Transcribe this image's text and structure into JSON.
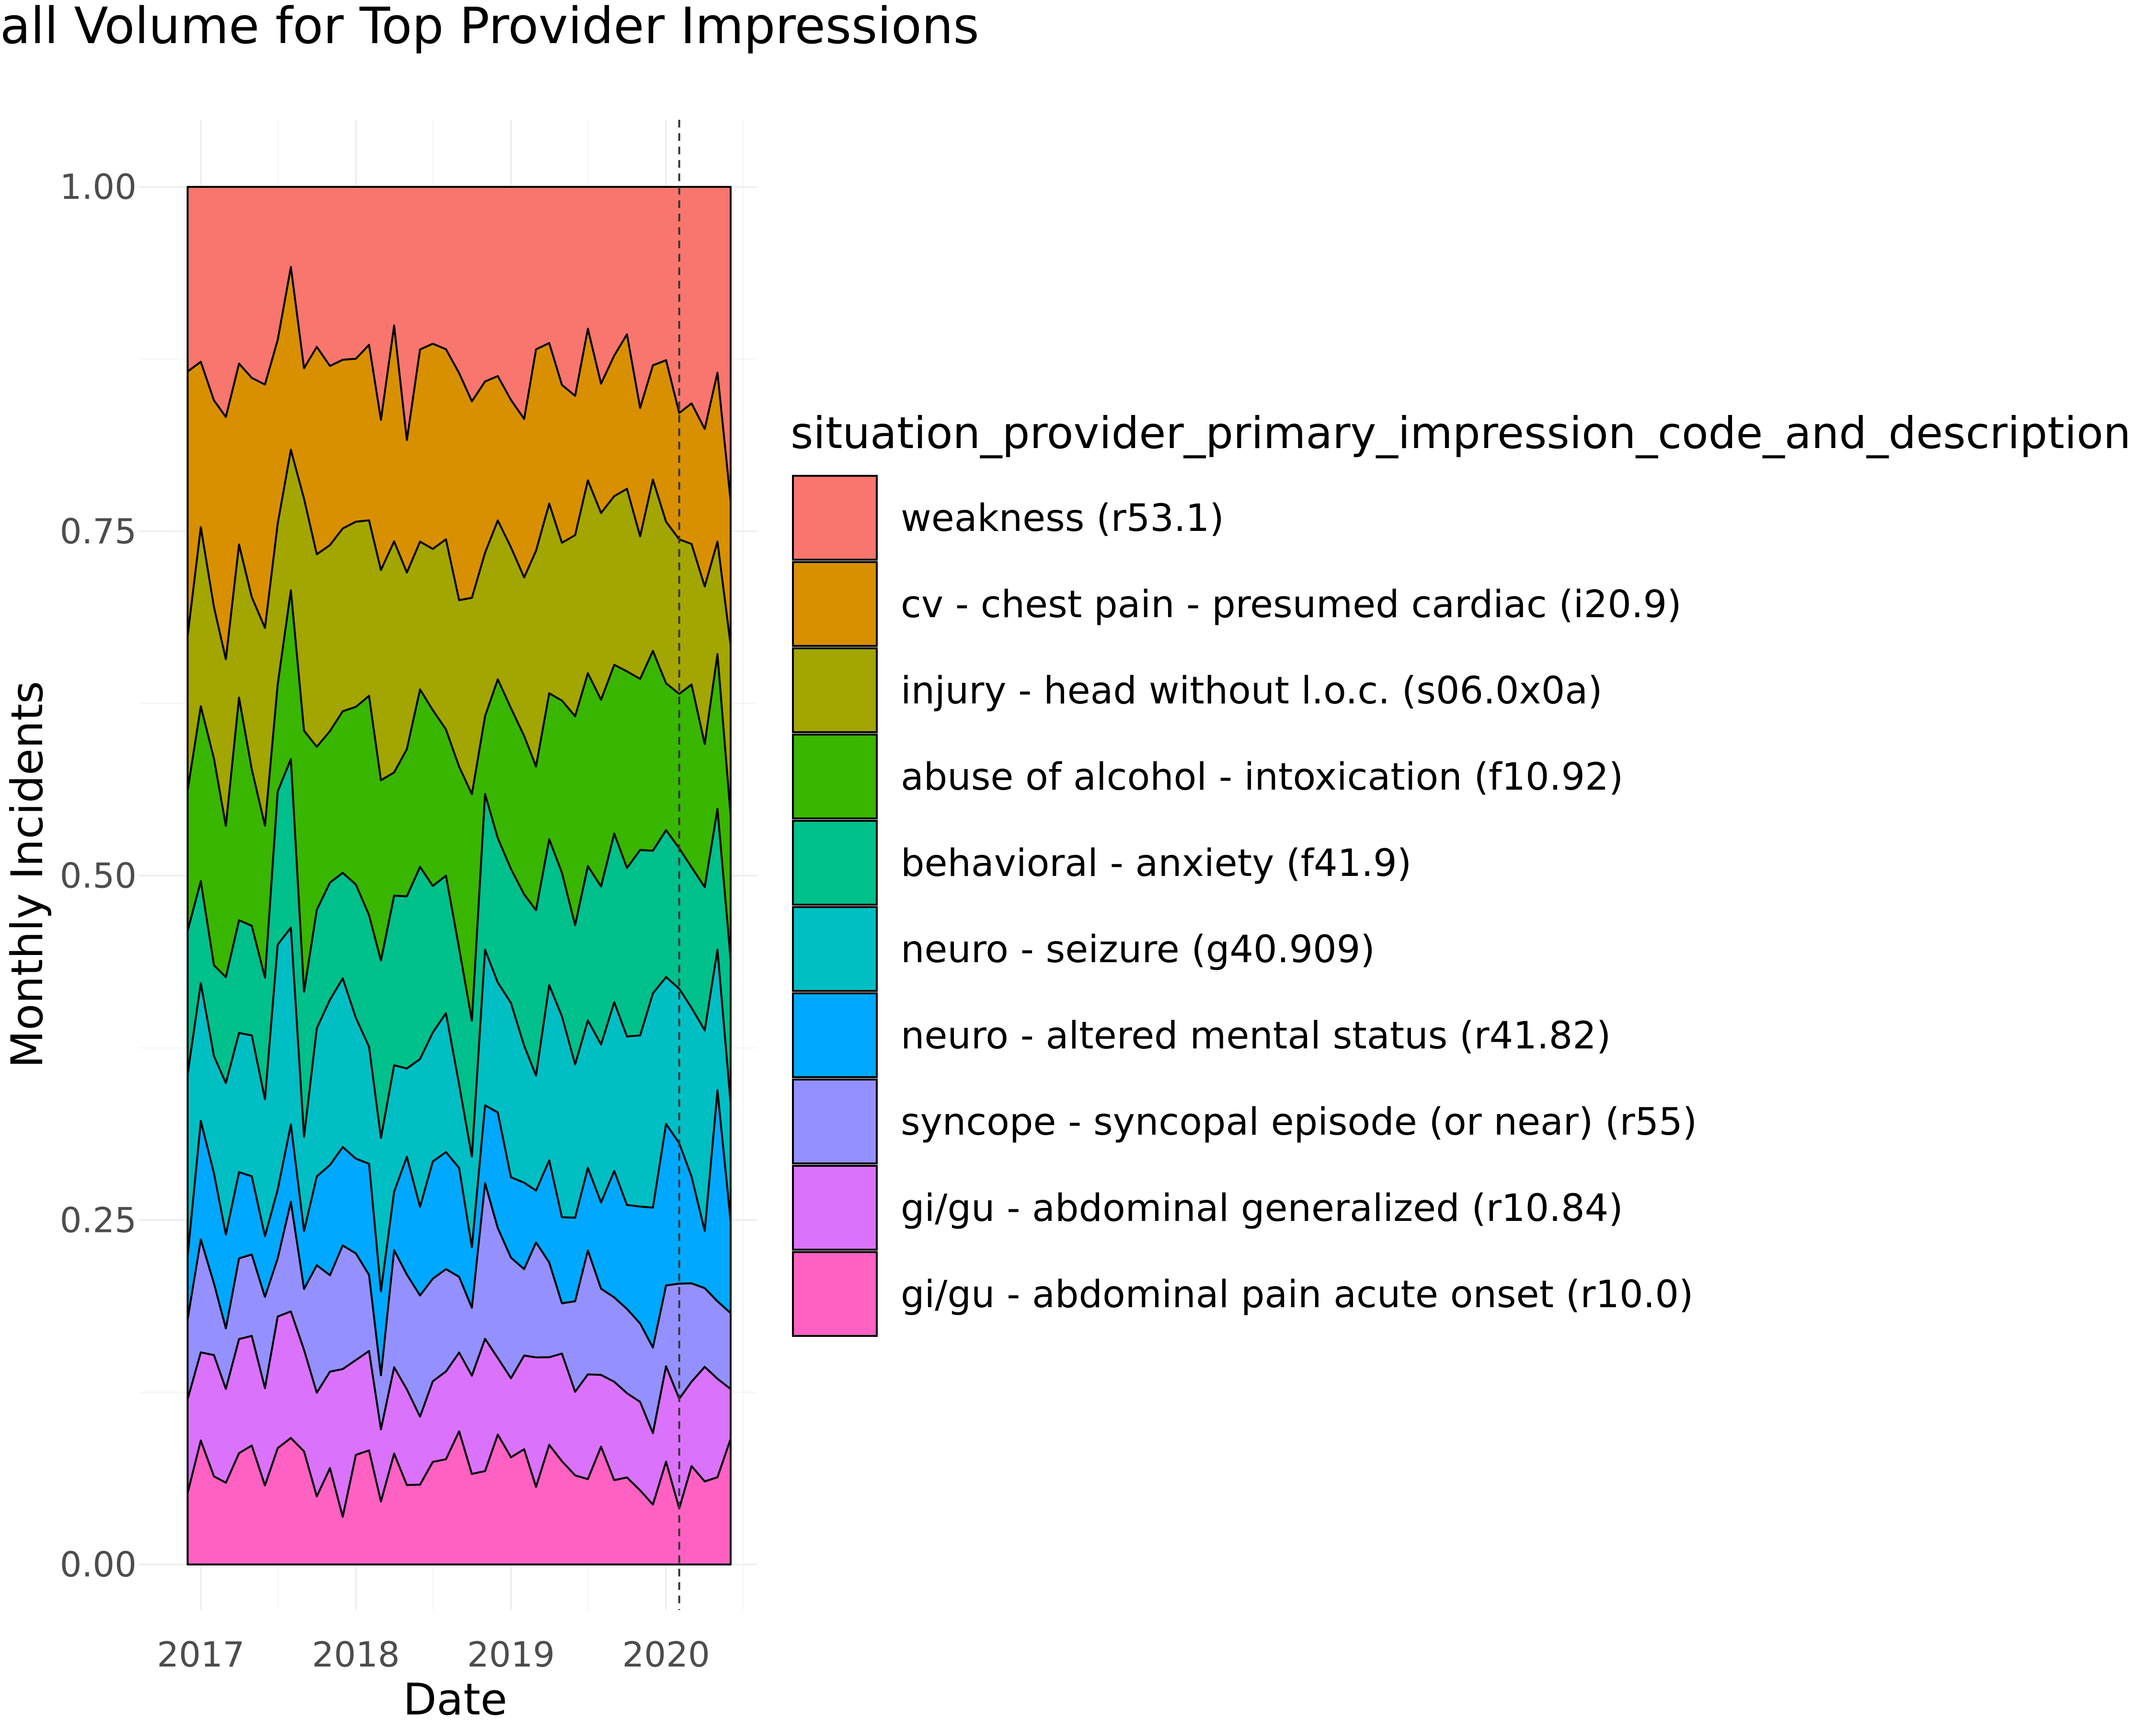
{
  "chart_data": {
    "type": "area",
    "stacked": true,
    "normalized": true,
    "title": "all Volume for Top Provider Impressions",
    "xlabel": "Date",
    "ylabel": "Monthly Incidents",
    "ylim": [
      0,
      1
    ],
    "xlim": [
      "2016-11-01",
      "2020-06-01"
    ],
    "y_ticks": [
      "0.00",
      "0.25",
      "0.50",
      "0.75",
      "1.00"
    ],
    "x_ticks": [
      "2017",
      "2018",
      "2019",
      "2020"
    ],
    "grid": true,
    "legend_position": "right",
    "legend_title": "situation_provider_primary_impression_code_and_description",
    "reference_line": {
      "x": "2020-02-01",
      "style": "dashed"
    },
    "x": [
      "2016-12-01",
      "2017-01-01",
      "2017-02-01",
      "2017-03-01",
      "2017-04-01",
      "2017-05-01",
      "2017-06-01",
      "2017-07-01",
      "2017-08-01",
      "2017-09-01",
      "2017-10-01",
      "2017-11-01",
      "2017-12-01",
      "2018-01-01",
      "2018-02-01",
      "2018-03-01",
      "2018-04-01",
      "2018-05-01",
      "2018-06-01",
      "2018-07-01",
      "2018-08-01",
      "2018-09-01",
      "2018-10-01",
      "2018-11-01",
      "2018-12-01",
      "2019-01-01",
      "2019-02-01",
      "2019-03-01",
      "2019-04-01",
      "2019-05-01",
      "2019-06-01",
      "2019-07-01",
      "2019-08-01",
      "2019-09-01",
      "2019-10-01",
      "2019-11-01",
      "2019-12-01",
      "2020-01-01",
      "2020-02-01",
      "2020-03-01",
      "2020-04-01",
      "2020-05-01",
      "2020-06-01"
    ],
    "series": [
      {
        "name": "gi/gu - abdominal pain acute onset  (r10.0)",
        "color": "#FF61C3",
        "values": [
          0.052,
          0.09,
          0.064,
          0.054,
          0.08,
          0.076,
          0.052,
          0.076,
          0.09,
          0.078,
          0.046,
          0.07,
          0.034,
          0.074,
          0.078,
          0.042,
          0.072,
          0.054,
          0.054,
          0.07,
          0.072,
          0.088,
          0.06,
          0.06,
          0.09,
          0.08,
          0.08,
          0.054,
          0.082,
          0.072,
          0.064,
          0.062,
          0.082,
          0.06,
          0.062,
          0.052,
          0.042,
          0.07,
          0.04,
          0.07,
          0.058,
          0.062,
          0.096
        ]
      },
      {
        "name": "gi/gu - abdominal generalized (r10.84)",
        "color": "#DB72FB",
        "values": [
          0.068,
          0.064,
          0.088,
          0.062,
          0.082,
          0.07,
          0.064,
          0.086,
          0.09,
          0.07,
          0.07,
          0.07,
          0.105,
          0.064,
          0.068,
          0.048,
          0.056,
          0.065,
          0.046,
          0.055,
          0.06,
          0.052,
          0.065,
          0.085,
          0.053,
          0.059,
          0.065,
          0.09,
          0.06,
          0.075,
          0.06,
          0.076,
          0.05,
          0.07,
          0.06,
          0.062,
          0.05,
          0.065,
          0.078,
          0.06,
          0.08,
          0.07,
          0.038
        ]
      },
      {
        "name": "syncope - syncopal episode (or near) (r55)",
        "color": "#93AA00",
        "values": [
          0.058,
          0.082,
          0.052,
          0.04,
          0.058,
          0.052,
          0.06,
          0.038,
          0.078,
          0.042,
          0.086,
          0.07,
          0.088,
          0.072,
          0.052,
          0.036,
          0.076,
          0.078,
          0.082,
          0.07,
          0.07,
          0.05,
          0.045,
          0.1,
          0.09,
          0.09,
          0.06,
          0.08,
          0.065,
          0.035,
          0.065,
          0.09,
          0.06,
          0.06,
          0.06,
          0.055,
          0.06,
          0.055,
          0.082,
          0.07,
          0.055,
          0.055,
          0.058
        ]
      },
      {
        "name": "neuro - altered mental status (r41.82)",
        "color": "#00B9E3",
        "values": [
          0.046,
          0.086,
          0.08,
          0.062,
          0.062,
          0.05,
          0.04,
          0.045,
          0.055,
          0.04,
          0.06,
          0.08,
          0.07,
          0.064,
          0.076,
          0.056,
          0.038,
          0.08,
          0.06,
          0.08,
          0.08,
          0.072,
          0.04,
          0.05,
          0.08,
          0.06,
          0.06,
          0.036,
          0.07,
          0.06,
          0.06,
          0.06,
          0.06,
          0.09,
          0.074,
          0.082,
          0.098,
          0.11,
          0.1,
          0.076,
          0.04,
          0.15,
          0.07
        ]
      },
      {
        "name": "neuro - seizure (g40.909)",
        "color": "#00C19F",
        "values": [
          0.132,
          0.1,
          0.085,
          0.1,
          0.1,
          0.09,
          0.09,
          0.16,
          0.14,
          0.065,
          0.1,
          0.12,
          0.12,
          0.095,
          0.08,
          0.102,
          0.082,
          0.06,
          0.1,
          0.088,
          0.095,
          0.055,
          0.06,
          0.1,
          0.09,
          0.13,
          0.095,
          0.08,
          0.12,
          0.14,
          0.11,
          0.107,
          0.11,
          0.12,
          0.12,
          0.12,
          0.15,
          0.1,
          0.11,
          0.12,
          0.14,
          0.1,
          0.09
        ]
      },
      {
        "name": "behavioral - anxiety (f41.9)",
        "color": "#00BA38",
        "values": [
          0.104,
          0.074,
          0.066,
          0.07,
          0.081,
          0.07,
          0.08,
          0.1,
          0.12,
          0.1,
          0.08,
          0.085,
          0.075,
          0.09,
          0.09,
          0.118,
          0.11,
          0.117,
          0.13,
          0.1,
          0.094,
          0.09,
          0.09,
          0.1,
          0.1,
          0.1,
          0.105,
          0.115,
          0.1,
          0.1,
          0.1,
          0.112,
          0.11,
          0.12,
          0.12,
          0.13,
          0.1,
          0.1,
          0.1,
          0.1,
          0.1,
          0.1,
          0.11
        ]
      },
      {
        "name": "abuse of alcohol - intoxication (f10.92)",
        "color": "#DB8E00",
        "values": [
          0.102,
          0.127,
          0.15,
          0.1,
          0.16,
          0.1,
          0.1,
          0.07,
          0.12,
          0.18,
          0.11,
          0.11,
          0.115,
          0.12,
          0.15,
          0.12,
          0.08,
          0.1,
          0.12,
          0.12,
          0.1,
          0.12,
          0.15,
          0.05,
          0.11,
          0.12,
          0.11,
          0.1,
          0.1,
          0.12,
          0.15,
          0.14,
          0.13,
          0.12,
          0.14,
          0.12,
          0.14,
          0.1,
          0.11,
          0.13,
          0.1,
          0.11,
          0.11
        ]
      },
      {
        "name": "injury - head without l.o.c. (s06.0x0a)",
        "color": "#A3A500",
        "values": [
          0.112,
          0.13,
          0.11,
          0.11,
          0.11,
          0.11,
          0.13,
          0.105,
          0.1,
          0.16,
          0.13,
          0.135,
          0.13,
          0.125,
          0.12,
          0.14,
          0.15,
          0.12,
          0.1,
          0.11,
          0.13,
          0.11,
          0.13,
          0.105,
          0.11,
          0.12,
          0.11,
          0.15,
          0.13,
          0.11,
          0.13,
          0.14,
          0.13,
          0.12,
          0.13,
          0.1,
          0.12,
          0.11,
          0.11,
          0.1,
          0.11,
          0.08,
          0.13
        ]
      },
      {
        "name": "cv - chest pain - presumed cardiac (i20.9)",
        "color": "#F8766D",
        "values": [
          0.192,
          0.12,
          0.15,
          0.16,
          0.13,
          0.14,
          0.16,
          0.12,
          0.13,
          0.09,
          0.14,
          0.13,
          0.12,
          0.11,
          0.12,
          0.1,
          0.14,
          0.09,
          0.13,
          0.14,
          0.13,
          0.15,
          0.13,
          0.11,
          0.1,
          0.11,
          0.11,
          0.14,
          0.11,
          0.11,
          0.1,
          0.11,
          0.09,
          0.1,
          0.11,
          0.09,
          0.08,
          0.11,
          0.09,
          0.1,
          0.11,
          0.12,
          0.11
        ]
      },
      {
        "name": "weakness (r53.1)",
        "color": "#FF61C3",
        "values": [
          0.134,
          0.127,
          0.155,
          0.152,
          0.127,
          0.122,
          0.13,
          0.1,
          0.057,
          0.125,
          0.108,
          0.13,
          0.123,
          0.116,
          0.108,
          0.155,
          0.09,
          0.172,
          0.11,
          0.107,
          0.111,
          0.123,
          0.142,
          0.125,
          0.131,
          0.159,
          0.161,
          0.113,
          0.107,
          0.138,
          0.15,
          0.103,
          0.137,
          0.12,
          0.105,
          0.155,
          0.125,
          0.118,
          0.161,
          0.154,
          0.169,
          0.132,
          0.24
        ]
      }
    ]
  }
}
